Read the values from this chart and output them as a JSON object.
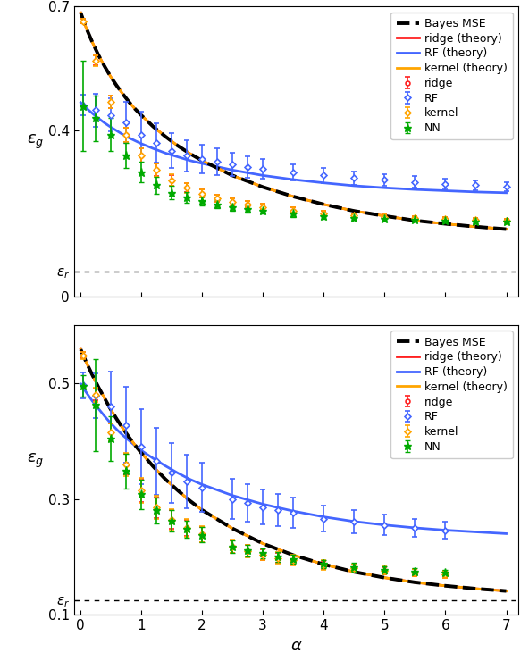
{
  "panel1": {
    "ylim": [
      0,
      0.7
    ],
    "yticks": [
      0.0,
      0.4,
      0.7
    ],
    "ytick_labels": [
      "0",
      "0.4",
      "0.7"
    ],
    "epsilon_r": 0.06,
    "ylabel": "$\\varepsilon_g$",
    "theory_x": [
      0.01,
      0.05,
      0.1,
      0.2,
      0.3,
      0.4,
      0.5,
      0.6,
      0.7,
      0.8,
      0.9,
      1.0,
      1.2,
      1.4,
      1.6,
      1.8,
      2.0,
      2.5,
      3.0,
      3.5,
      4.0,
      4.5,
      5.0,
      5.5,
      6.0,
      6.5,
      7.0
    ],
    "bayes_theory": [
      0.685,
      0.668,
      0.648,
      0.614,
      0.583,
      0.556,
      0.531,
      0.509,
      0.489,
      0.47,
      0.453,
      0.438,
      0.41,
      0.386,
      0.364,
      0.345,
      0.328,
      0.292,
      0.264,
      0.241,
      0.222,
      0.206,
      0.194,
      0.183,
      0.175,
      0.168,
      0.162
    ],
    "ridge_theory": [
      0.685,
      0.668,
      0.648,
      0.614,
      0.583,
      0.556,
      0.531,
      0.509,
      0.489,
      0.47,
      0.453,
      0.438,
      0.41,
      0.386,
      0.364,
      0.345,
      0.328,
      0.292,
      0.264,
      0.241,
      0.222,
      0.206,
      0.194,
      0.183,
      0.175,
      0.168,
      0.162
    ],
    "kernel_theory": [
      0.685,
      0.668,
      0.648,
      0.614,
      0.583,
      0.556,
      0.531,
      0.509,
      0.489,
      0.47,
      0.453,
      0.438,
      0.41,
      0.386,
      0.364,
      0.345,
      0.328,
      0.292,
      0.264,
      0.241,
      0.222,
      0.206,
      0.194,
      0.183,
      0.175,
      0.168,
      0.162
    ],
    "rf_theory": [
      0.468,
      0.462,
      0.455,
      0.442,
      0.43,
      0.419,
      0.409,
      0.4,
      0.391,
      0.383,
      0.376,
      0.369,
      0.357,
      0.346,
      0.337,
      0.328,
      0.321,
      0.305,
      0.292,
      0.282,
      0.274,
      0.267,
      0.262,
      0.258,
      0.255,
      0.252,
      0.25
    ],
    "data_x_ridge": [
      0.05,
      0.25,
      0.5,
      0.75,
      1.0,
      1.25,
      1.5,
      1.75,
      2.0,
      2.25,
      2.5,
      2.75,
      3.0,
      3.5,
      4.0,
      4.5,
      5.0,
      5.5,
      6.0,
      6.5,
      7.0
    ],
    "data_y_ridge": [
      0.665,
      0.57,
      0.47,
      0.39,
      0.34,
      0.305,
      0.28,
      0.262,
      0.248,
      0.237,
      0.228,
      0.222,
      0.216,
      0.207,
      0.2,
      0.195,
      0.192,
      0.189,
      0.187,
      0.185,
      0.183
    ],
    "data_err_ridge": [
      0.005,
      0.012,
      0.015,
      0.018,
      0.018,
      0.015,
      0.013,
      0.011,
      0.01,
      0.009,
      0.008,
      0.008,
      0.007,
      0.007,
      0.006,
      0.006,
      0.005,
      0.005,
      0.005,
      0.005,
      0.004
    ],
    "data_x_rf": [
      0.05,
      0.25,
      0.5,
      0.75,
      1.0,
      1.25,
      1.5,
      1.75,
      2.0,
      2.25,
      2.5,
      2.75,
      3.0,
      3.5,
      4.0,
      4.5,
      5.0,
      5.5,
      6.0,
      6.5,
      7.0
    ],
    "data_y_rf": [
      0.462,
      0.45,
      0.438,
      0.42,
      0.39,
      0.37,
      0.352,
      0.34,
      0.332,
      0.325,
      0.318,
      0.313,
      0.308,
      0.299,
      0.292,
      0.286,
      0.281,
      0.276,
      0.272,
      0.268,
      0.265
    ],
    "data_err_rf": [
      0.025,
      0.04,
      0.04,
      0.05,
      0.055,
      0.048,
      0.042,
      0.038,
      0.035,
      0.032,
      0.028,
      0.026,
      0.024,
      0.02,
      0.018,
      0.016,
      0.015,
      0.014,
      0.013,
      0.012,
      0.011
    ],
    "data_x_kernel": [
      0.05,
      0.25,
      0.5,
      0.75,
      1.0,
      1.25,
      1.5,
      1.75,
      2.0,
      2.25,
      2.5,
      2.75,
      3.0,
      3.5,
      4.0,
      4.5,
      5.0,
      5.5,
      6.0,
      6.5,
      7.0
    ],
    "data_y_kernel": [
      0.665,
      0.57,
      0.47,
      0.39,
      0.34,
      0.305,
      0.28,
      0.262,
      0.248,
      0.237,
      0.228,
      0.222,
      0.216,
      0.207,
      0.2,
      0.195,
      0.192,
      0.189,
      0.187,
      0.185,
      0.183
    ],
    "data_err_kernel": [
      0.005,
      0.013,
      0.016,
      0.018,
      0.018,
      0.016,
      0.014,
      0.012,
      0.01,
      0.009,
      0.008,
      0.008,
      0.007,
      0.007,
      0.006,
      0.006,
      0.005,
      0.005,
      0.005,
      0.005,
      0.004
    ],
    "data_x_nn": [
      0.05,
      0.25,
      0.5,
      0.75,
      1.0,
      1.25,
      1.5,
      1.75,
      2.0,
      2.25,
      2.5,
      2.75,
      3.0,
      3.5,
      4.0,
      4.5,
      5.0,
      5.5,
      6.0,
      6.5,
      7.0
    ],
    "data_y_nn": [
      0.46,
      0.43,
      0.39,
      0.34,
      0.3,
      0.268,
      0.25,
      0.238,
      0.23,
      0.222,
      0.216,
      0.211,
      0.207,
      0.199,
      0.194,
      0.19,
      0.187,
      0.185,
      0.183,
      0.181,
      0.18
    ],
    "data_err_nn": [
      0.11,
      0.055,
      0.04,
      0.03,
      0.025,
      0.02,
      0.016,
      0.013,
      0.011,
      0.01,
      0.009,
      0.008,
      0.008,
      0.007,
      0.006,
      0.006,
      0.005,
      0.005,
      0.005,
      0.004,
      0.004
    ]
  },
  "panel2": {
    "ylim": [
      0.1,
      0.6
    ],
    "yticks": [
      0.1,
      0.3,
      0.5
    ],
    "ytick_labels": [
      "0.1",
      "0.3",
      "0.5"
    ],
    "epsilon_r": 0.125,
    "ylabel": "$\\varepsilon_g$",
    "xlabel": "$\\alpha$",
    "theory_x": [
      0.01,
      0.05,
      0.1,
      0.2,
      0.3,
      0.4,
      0.5,
      0.6,
      0.7,
      0.8,
      0.9,
      1.0,
      1.2,
      1.4,
      1.6,
      1.8,
      2.0,
      2.5,
      3.0,
      3.5,
      4.0,
      4.5,
      5.0,
      5.5,
      6.0,
      6.5,
      7.0
    ],
    "bayes_theory": [
      0.558,
      0.548,
      0.536,
      0.514,
      0.493,
      0.474,
      0.455,
      0.438,
      0.422,
      0.407,
      0.393,
      0.38,
      0.356,
      0.334,
      0.315,
      0.297,
      0.281,
      0.249,
      0.223,
      0.203,
      0.187,
      0.174,
      0.164,
      0.156,
      0.15,
      0.145,
      0.141
    ],
    "ridge_theory": [
      0.558,
      0.548,
      0.536,
      0.514,
      0.493,
      0.474,
      0.455,
      0.438,
      0.422,
      0.407,
      0.393,
      0.38,
      0.356,
      0.334,
      0.315,
      0.297,
      0.281,
      0.249,
      0.223,
      0.203,
      0.187,
      0.174,
      0.164,
      0.156,
      0.15,
      0.145,
      0.141
    ],
    "kernel_theory": [
      0.558,
      0.548,
      0.536,
      0.514,
      0.493,
      0.474,
      0.455,
      0.438,
      0.422,
      0.407,
      0.393,
      0.38,
      0.356,
      0.334,
      0.315,
      0.297,
      0.281,
      0.249,
      0.223,
      0.203,
      0.187,
      0.174,
      0.164,
      0.156,
      0.15,
      0.145,
      0.141
    ],
    "rf_theory": [
      0.498,
      0.492,
      0.484,
      0.469,
      0.456,
      0.443,
      0.431,
      0.42,
      0.41,
      0.401,
      0.392,
      0.384,
      0.37,
      0.357,
      0.345,
      0.334,
      0.325,
      0.306,
      0.291,
      0.279,
      0.269,
      0.261,
      0.255,
      0.25,
      0.246,
      0.243,
      0.24
    ],
    "data_x_ridge": [
      0.05,
      0.25,
      0.5,
      0.75,
      1.0,
      1.25,
      1.5,
      1.75,
      2.0,
      2.5,
      2.75,
      3.0,
      3.25,
      3.5,
      4.0,
      4.5,
      5.0,
      5.5,
      6.0
    ],
    "data_y_ridge": [
      0.548,
      0.48,
      0.415,
      0.36,
      0.315,
      0.285,
      0.264,
      0.25,
      0.239,
      0.218,
      0.21,
      0.204,
      0.198,
      0.194,
      0.186,
      0.18,
      0.176,
      0.173,
      0.17
    ],
    "data_err_ridge": [
      0.005,
      0.01,
      0.015,
      0.018,
      0.02,
      0.018,
      0.016,
      0.014,
      0.013,
      0.011,
      0.01,
      0.009,
      0.009,
      0.008,
      0.007,
      0.007,
      0.006,
      0.006,
      0.006
    ],
    "data_x_rf": [
      0.05,
      0.25,
      0.5,
      0.75,
      1.0,
      1.25,
      1.5,
      1.75,
      2.0,
      2.5,
      2.75,
      3.0,
      3.25,
      3.5,
      4.0,
      4.5,
      5.0,
      5.5,
      6.0
    ],
    "data_y_rf": [
      0.496,
      0.478,
      0.46,
      0.428,
      0.39,
      0.365,
      0.345,
      0.33,
      0.32,
      0.3,
      0.293,
      0.286,
      0.281,
      0.276,
      0.266,
      0.26,
      0.255,
      0.25,
      0.246
    ],
    "data_err_rf": [
      0.022,
      0.038,
      0.06,
      0.065,
      0.065,
      0.058,
      0.052,
      0.046,
      0.042,
      0.035,
      0.032,
      0.03,
      0.028,
      0.026,
      0.022,
      0.02,
      0.018,
      0.016,
      0.015
    ],
    "data_x_kernel": [
      0.05,
      0.25,
      0.5,
      0.75,
      1.0,
      1.25,
      1.5,
      1.75,
      2.0,
      2.5,
      2.75,
      3.0,
      3.25,
      3.5,
      4.0,
      4.5,
      5.0,
      5.5,
      6.0
    ],
    "data_y_kernel": [
      0.548,
      0.48,
      0.415,
      0.36,
      0.315,
      0.285,
      0.264,
      0.25,
      0.239,
      0.218,
      0.21,
      0.204,
      0.198,
      0.194,
      0.186,
      0.18,
      0.176,
      0.173,
      0.17
    ],
    "data_err_kernel": [
      0.006,
      0.012,
      0.016,
      0.02,
      0.022,
      0.02,
      0.018,
      0.015,
      0.014,
      0.012,
      0.011,
      0.01,
      0.01,
      0.009,
      0.008,
      0.007,
      0.007,
      0.006,
      0.006
    ],
    "data_x_nn": [
      0.05,
      0.25,
      0.5,
      0.75,
      1.0,
      1.25,
      1.5,
      1.75,
      2.0,
      2.5,
      2.75,
      3.0,
      3.25,
      3.5,
      4.0,
      4.5,
      5.0,
      5.5,
      6.0
    ],
    "data_y_nn": [
      0.495,
      0.462,
      0.404,
      0.348,
      0.308,
      0.28,
      0.262,
      0.248,
      0.238,
      0.218,
      0.211,
      0.206,
      0.2,
      0.196,
      0.188,
      0.182,
      0.178,
      0.175,
      0.173
    ],
    "data_err_nn": [
      0.018,
      0.08,
      0.038,
      0.03,
      0.025,
      0.022,
      0.018,
      0.015,
      0.013,
      0.011,
      0.01,
      0.009,
      0.009,
      0.008,
      0.007,
      0.007,
      0.006,
      0.006,
      0.005
    ]
  },
  "colors": {
    "bayes": "#000000",
    "ridge": "#FF2020",
    "rf": "#4466FF",
    "kernel": "#FFA500",
    "nn": "#00AA00"
  },
  "xlim": [
    -0.1,
    7.2
  ],
  "xticks": [
    0,
    1,
    2,
    3,
    4,
    5,
    6,
    7
  ]
}
